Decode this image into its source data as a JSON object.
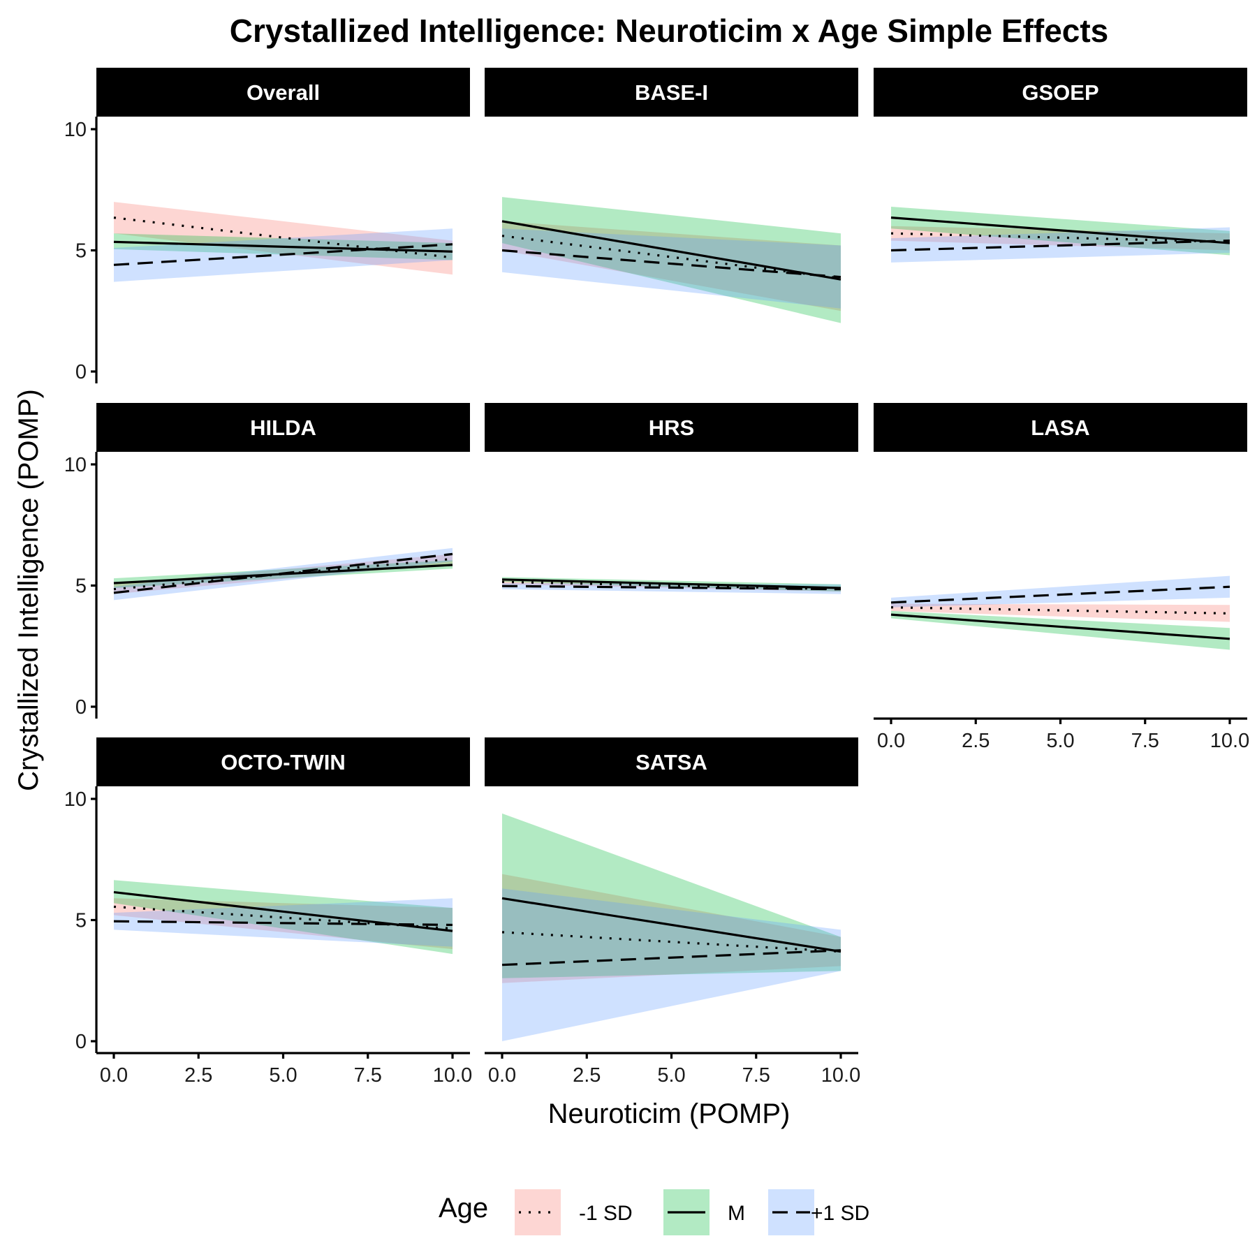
{
  "chart_data": {
    "type": "line",
    "title": "Crystallized Intelligence: Neuroticim x Age Simple Effects",
    "xlabel": "Neuroticim (POMP)",
    "ylabel": "Crystallized Intelligence (POMP)",
    "xlim": [
      0,
      10
    ],
    "ylim": [
      0,
      10
    ],
    "x_ticks": [
      "0.0",
      "2.5",
      "5.0",
      "7.5",
      "10.0"
    ],
    "y_ticks": [
      "0",
      "5",
      "10"
    ],
    "legend": {
      "title": "Age",
      "position": "bottom",
      "entries": [
        {
          "label": "-1 SD",
          "linestyle": "dotted",
          "fill": "#F8766D"
        },
        {
          "label": "M",
          "linestyle": "solid",
          "fill": "#00BA38"
        },
        {
          "label": "+1 SD",
          "linestyle": "dashed",
          "fill": "#619CFF"
        }
      ]
    },
    "grid": false,
    "ribbon_opacity": 0.3,
    "x": [
      0,
      10
    ],
    "panels": [
      {
        "name": "Overall",
        "series": [
          {
            "name": "-1 SD",
            "y": [
              6.35,
              4.7
            ],
            "lower": [
              5.7,
              4.0
            ],
            "upper": [
              7.0,
              5.4
            ]
          },
          {
            "name": "M",
            "y": [
              5.35,
              4.95
            ],
            "lower": [
              5.05,
              4.6
            ],
            "upper": [
              5.7,
              5.3
            ]
          },
          {
            "name": "+1 SD",
            "y": [
              4.4,
              5.25
            ],
            "lower": [
              3.7,
              4.6
            ],
            "upper": [
              5.1,
              5.9
            ]
          }
        ]
      },
      {
        "name": "BASE-I",
        "series": [
          {
            "name": "-1 SD",
            "y": [
              5.6,
              3.85
            ],
            "lower": [
              5.0,
              2.5
            ],
            "upper": [
              6.2,
              5.2
            ]
          },
          {
            "name": "M",
            "y": [
              6.2,
              3.8
            ],
            "lower": [
              5.3,
              2.0
            ],
            "upper": [
              7.2,
              5.7
            ]
          },
          {
            "name": "+1 SD",
            "y": [
              5.0,
              3.9
            ],
            "lower": [
              4.1,
              2.6
            ],
            "upper": [
              5.9,
              5.2
            ]
          }
        ]
      },
      {
        "name": "GSOEP",
        "series": [
          {
            "name": "-1 SD",
            "y": [
              5.7,
              5.35
            ],
            "lower": [
              5.4,
              5.0
            ],
            "upper": [
              6.0,
              5.7
            ]
          },
          {
            "name": "M",
            "y": [
              6.35,
              5.3
            ],
            "lower": [
              5.9,
              4.8
            ],
            "upper": [
              6.8,
              5.8
            ]
          },
          {
            "name": "+1 SD",
            "y": [
              5.0,
              5.4
            ],
            "lower": [
              4.5,
              4.9
            ],
            "upper": [
              5.5,
              5.95
            ]
          }
        ]
      },
      {
        "name": "HILDA",
        "series": [
          {
            "name": "-1 SD",
            "y": [
              4.85,
              6.1
            ],
            "lower": [
              4.65,
              5.9
            ],
            "upper": [
              5.05,
              6.3
            ]
          },
          {
            "name": "M",
            "y": [
              5.1,
              5.85
            ],
            "lower": [
              4.9,
              5.7
            ],
            "upper": [
              5.3,
              6.05
            ]
          },
          {
            "name": "+1 SD",
            "y": [
              4.7,
              6.3
            ],
            "lower": [
              4.4,
              6.0
            ],
            "upper": [
              4.95,
              6.55
            ]
          }
        ]
      },
      {
        "name": "HRS",
        "series": [
          {
            "name": "-1 SD",
            "y": [
              5.15,
              4.85
            ],
            "lower": [
              5.05,
              4.75
            ],
            "upper": [
              5.25,
              4.95
            ]
          },
          {
            "name": "M",
            "y": [
              5.25,
              4.9
            ],
            "lower": [
              5.15,
              4.75
            ],
            "upper": [
              5.35,
              5.05
            ]
          },
          {
            "name": "+1 SD",
            "y": [
              4.98,
              4.85
            ],
            "lower": [
              4.85,
              4.65
            ],
            "upper": [
              5.1,
              5.05
            ]
          }
        ]
      },
      {
        "name": "LASA",
        "series": [
          {
            "name": "-1 SD",
            "y": [
              4.1,
              3.85
            ],
            "lower": [
              3.95,
              3.5
            ],
            "upper": [
              4.25,
              4.2
            ]
          },
          {
            "name": "M",
            "y": [
              3.8,
              2.8
            ],
            "lower": [
              3.65,
              2.35
            ],
            "upper": [
              3.95,
              3.25
            ]
          },
          {
            "name": "+1 SD",
            "y": [
              4.3,
              4.95
            ],
            "lower": [
              4.1,
              4.5
            ],
            "upper": [
              4.5,
              5.4
            ]
          }
        ]
      },
      {
        "name": "OCTO-TWIN",
        "series": [
          {
            "name": "-1 SD",
            "y": [
              5.55,
              4.65
            ],
            "lower": [
              5.2,
              3.8
            ],
            "upper": [
              5.9,
              5.5
            ]
          },
          {
            "name": "M",
            "y": [
              6.15,
              4.55
            ],
            "lower": [
              5.7,
              3.6
            ],
            "upper": [
              6.65,
              5.5
            ]
          },
          {
            "name": "+1 SD",
            "y": [
              4.95,
              4.8
            ],
            "lower": [
              4.6,
              3.9
            ],
            "upper": [
              5.3,
              5.9
            ]
          }
        ]
      },
      {
        "name": "SATSA",
        "series": [
          {
            "name": "-1 SD",
            "y": [
              4.5,
              3.7
            ],
            "lower": [
              2.4,
              3.1
            ],
            "upper": [
              6.9,
              4.3
            ]
          },
          {
            "name": "M",
            "y": [
              5.9,
              3.7
            ],
            "lower": [
              2.6,
              2.9
            ],
            "upper": [
              9.4,
              4.3
            ]
          },
          {
            "name": "+1 SD",
            "y": [
              3.15,
              3.75
            ],
            "lower": [
              0.0,
              2.9
            ],
            "upper": [
              6.3,
              4.6
            ]
          }
        ]
      }
    ]
  }
}
